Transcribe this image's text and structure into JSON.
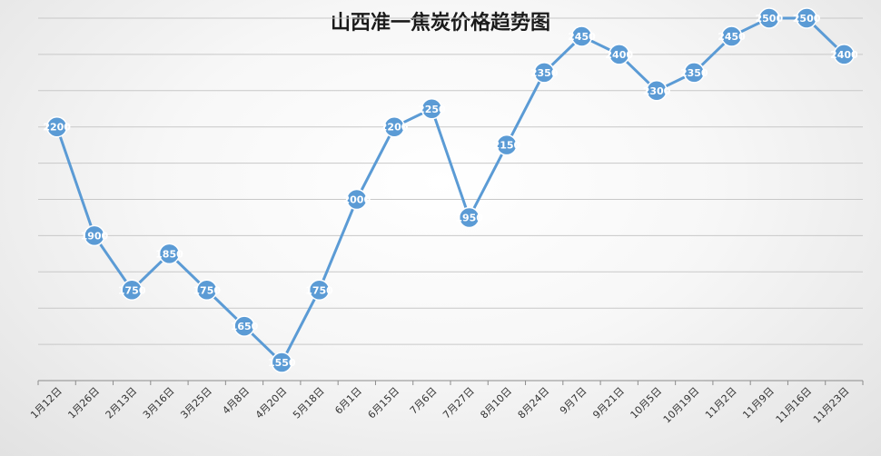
{
  "chart_data": {
    "type": "line",
    "title": "山西准一焦炭价格趋势图",
    "xlabel": "",
    "ylabel": "",
    "categories": [
      "1月12日",
      "1月26日",
      "2月13日",
      "3月16日",
      "3月25日",
      "4月8日",
      "4月20日",
      "5月18日",
      "6月1日",
      "6月15日",
      "7月6日",
      "7月27日",
      "8月10日",
      "8月24日",
      "9月7日",
      "9月21日",
      "10月5日",
      "10月19日",
      "11月2日",
      "11月9日",
      "11月16日",
      "11月23日"
    ],
    "series": [
      {
        "values": [
          2200,
          1900,
          1750,
          1850,
          1750,
          1650,
          1550,
          1750,
          2000,
          2200,
          2250,
          1950,
          2150,
          2350,
          2450,
          2400,
          2300,
          2350,
          2450,
          2500,
          2500,
          2400
        ]
      }
    ],
    "ylim": [
      1500,
      2500
    ],
    "grid": true,
    "color": "#5b9bd5"
  }
}
